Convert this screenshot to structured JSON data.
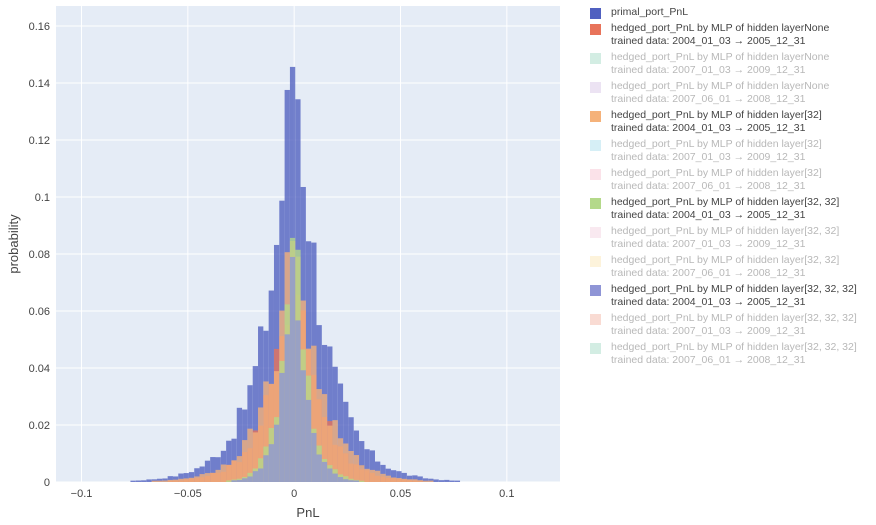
{
  "chart_data": {
    "type": "bar",
    "xlabel": "PnL",
    "ylabel": "probability",
    "xlim": [
      -0.112,
      0.125
    ],
    "ylim": [
      0,
      0.167
    ],
    "x_ticks": [
      -0.1,
      -0.05,
      0,
      0.05,
      0.1
    ],
    "x_tick_labels": [
      "−0.1",
      "−0.05",
      "0",
      "0.05",
      "0.1"
    ],
    "y_ticks": [
      0,
      0.02,
      0.04,
      0.06,
      0.08,
      0.1,
      0.12,
      0.14,
      0.16
    ],
    "y_tick_labels": [
      "0",
      "0.02",
      "0.04",
      "0.06",
      "0.08",
      "0.1",
      "0.12",
      "0.14",
      "0.16"
    ],
    "grid": true,
    "legend_placement": "right",
    "bin_width": 0.0025,
    "series": [
      {
        "name": "primal_port_PnL",
        "color": "#5060c0",
        "visible": true,
        "peak": 0.16,
        "spread": 0.013
      },
      {
        "name": "hedged_port_PnL by  MLP of hidden layerNone",
        "subtitle": "trained data: 2004_01_03 → 2005_12_31",
        "color": "#e8735a",
        "visible": true,
        "peak": 0.088,
        "spread": 0.011
      },
      {
        "name": "hedged_port_PnL by  MLP of hidden layerNone",
        "subtitle": "trained data: 2007_01_03 → 2009_12_31",
        "color": "#a8dcc8",
        "visible": false
      },
      {
        "name": "hedged_port_PnL by  MLP of hidden layerNone",
        "subtitle": "trained data: 2007_06_01 → 2008_12_31",
        "color": "#d9c8e8",
        "visible": false
      },
      {
        "name": "hedged_port_PnL by  MLP of hidden layer[32]",
        "subtitle": "trained data: 2004_01_03 → 2005_12_31",
        "color": "#f5b27a",
        "visible": true,
        "peak": 0.093,
        "spread": 0.012
      },
      {
        "name": "hedged_port_PnL by  MLP of hidden layer[32]",
        "subtitle": "trained data: 2007_01_03 → 2009_12_31",
        "color": "#aee0ee",
        "visible": false
      },
      {
        "name": "hedged_port_PnL by  MLP of hidden layer[32]",
        "subtitle": "trained data: 2007_06_01 → 2008_12_31",
        "color": "#f7c6d4",
        "visible": false
      },
      {
        "name": "hedged_port_PnL by  MLP of hidden layer[32, 32]",
        "subtitle": "trained data: 2004_01_03 → 2005_12_31",
        "color": "#b4d98a",
        "visible": true,
        "peak": 0.1,
        "spread": 0.006
      },
      {
        "name": "hedged_port_PnL by  MLP of hidden layer[32, 32]",
        "subtitle": "trained data: 2007_01_03 → 2009_12_31",
        "color": "#f3d4e2",
        "visible": false
      },
      {
        "name": "hedged_port_PnL by  MLP of hidden layer[32, 32]",
        "subtitle": "trained data: 2007_06_01 → 2008_12_31",
        "color": "#fbe8b8",
        "visible": false
      },
      {
        "name": "hedged_port_PnL by  MLP of hidden layer[32, 32, 32]",
        "subtitle": "trained data: 2004_01_03 → 2005_12_31",
        "color": "#8f95d6",
        "visible": true,
        "peak": 0.093,
        "spread": 0.0055
      },
      {
        "name": "hedged_port_PnL by  MLP of hidden layer[32, 32, 32]",
        "subtitle": "trained data: 2007_01_03 → 2009_12_31",
        "color": "#f4b8a8",
        "visible": false
      },
      {
        "name": "hedged_port_PnL by  MLP of hidden layer[32, 32, 32]",
        "subtitle": "trained data: 2007_06_01 → 2008_12_31",
        "color": "#a8dcc8",
        "visible": false
      }
    ]
  }
}
